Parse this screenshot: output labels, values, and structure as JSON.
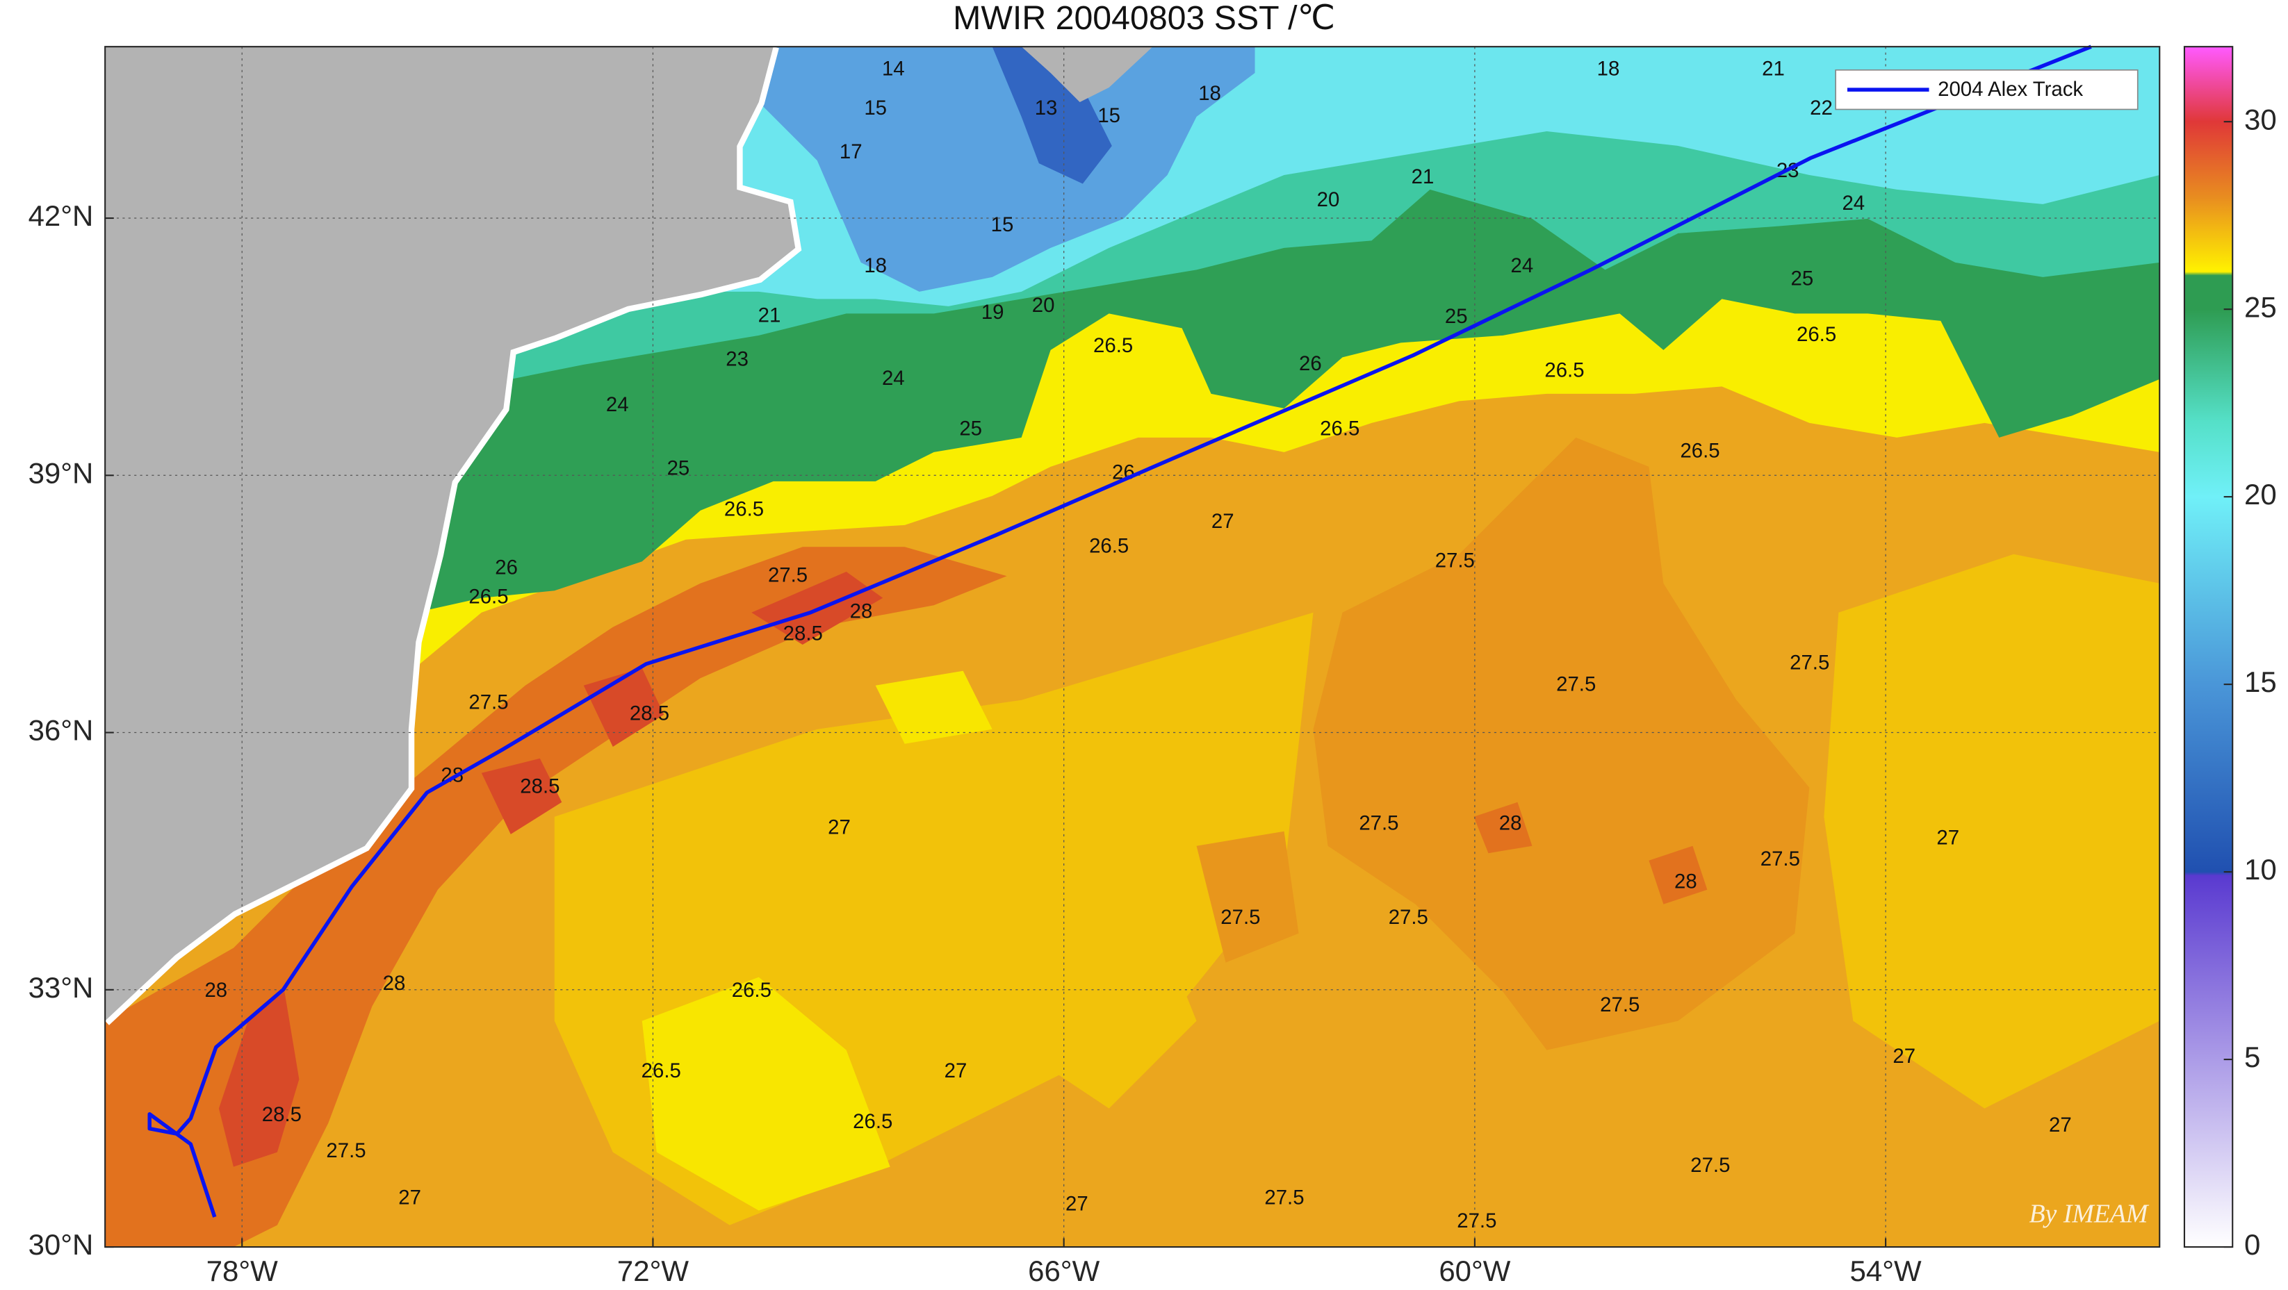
{
  "chart_data": {
    "type": "map",
    "title": "MWIR 20040803 SST /℃",
    "xlim": [
      -80,
      -50
    ],
    "ylim": [
      30,
      44
    ],
    "xticks": [
      {
        "value": -78,
        "label": "78°W"
      },
      {
        "value": -72,
        "label": "72°W"
      },
      {
        "value": -66,
        "label": "66°W"
      },
      {
        "value": -60,
        "label": "60°W"
      },
      {
        "value": -54,
        "label": "54°W"
      }
    ],
    "yticks": [
      {
        "value": 30,
        "label": "30°N"
      },
      {
        "value": 33,
        "label": "33°N"
      },
      {
        "value": 36,
        "label": "36°N"
      },
      {
        "value": 39,
        "label": "39°N"
      },
      {
        "value": 42,
        "label": "42°N"
      }
    ],
    "grid": true,
    "legend": "upper right",
    "series": [
      {
        "name": "2004 Alex Track",
        "color": "#0a14f0",
        "x": [
          -78.4,
          -78.75,
          -79.35,
          -79.35,
          -78.95,
          -78.75,
          -78.38,
          -77.4,
          -76.4,
          -75.3,
          -74.2,
          -72.1,
          -69.7,
          -67.0,
          -64.4,
          -60.9,
          -58.3,
          -55.1,
          -51.0
        ],
        "values": [
          30.35,
          31.2,
          31.55,
          31.38,
          31.32,
          31.5,
          32.33,
          33.0,
          34.2,
          35.3,
          35.8,
          36.8,
          37.4,
          38.3,
          39.2,
          40.4,
          41.4,
          42.7,
          44.0
        ]
      }
    ],
    "contour_labels": {
      "x": [
        -68.49,
        -68.75,
        -69.11,
        -66.26,
        -65.34,
        -63.87,
        -58.05,
        -55.64,
        -54.94,
        -55.43,
        -54.47,
        -55.22,
        -60.76,
        -62.14,
        -59.31,
        -60.27,
        -66.9,
        -68.75,
        -67.04,
        -66.3,
        -70.3,
        -70.77,
        -72.52,
        -68.49,
        -67.36,
        -71.63,
        -65.28,
        -62.4,
        -70.67,
        -74.14,
        -74.4,
        -65.13,
        -58.69,
        -55.01,
        -56.71,
        -61.97,
        -63.68,
        -70.03,
        -69.81,
        -68.96,
        -65.34,
        -60.29,
        -58.52,
        -55.11,
        -72.05,
        -74.4,
        -73.65,
        -74.93,
        -59.48,
        -56.92,
        -61.4,
        -55.54,
        -69.28,
        -53.09,
        -63.42,
        -60.97,
        -75.78,
        -78.38,
        -57.88,
        -70.56,
        -71.88,
        -77.42,
        -68.79,
        -51.45,
        -76.48,
        -75.55,
        -56.56,
        -62.78,
        -59.97,
        -65.81,
        -53.73,
        -67.58
      ],
      "y": [
        43.73,
        43.27,
        42.76,
        43.27,
        43.18,
        43.44,
        43.73,
        43.73,
        43.27,
        42.54,
        42.16,
        41.28,
        42.47,
        42.2,
        41.43,
        40.84,
        41.91,
        41.43,
        40.89,
        40.97,
        40.85,
        40.34,
        39.81,
        40.12,
        39.53,
        39.07,
        40.5,
        40.29,
        38.59,
        37.91,
        37.57,
        39.02,
        40.21,
        40.63,
        39.27,
        39.53,
        38.45,
        37.82,
        37.14,
        37.4,
        38.16,
        37.99,
        36.55,
        36.8,
        36.21,
        36.34,
        35.36,
        35.49,
        34.93,
        34.25,
        34.93,
        34.51,
        34.88,
        34.76,
        33.83,
        33.83,
        33.06,
        32.98,
        32.81,
        32.98,
        32.04,
        31.53,
        31.45,
        31.41,
        31.11,
        30.56,
        30.94,
        30.56,
        30.29,
        30.49,
        32.21,
        32.04
      ],
      "values": [
        14,
        15,
        17,
        13,
        15,
        18,
        18,
        21,
        22,
        23,
        24,
        25,
        21,
        20,
        24,
        25,
        15,
        18,
        19,
        20,
        21,
        23,
        24,
        24,
        25,
        25,
        26.5,
        26,
        26.5,
        26,
        26.5,
        26,
        26.5,
        26.5,
        26.5,
        26.5,
        27,
        27.5,
        28.5,
        28,
        26.5,
        27.5,
        27.5,
        27.5,
        28.5,
        27.5,
        28.5,
        28,
        28,
        28,
        27.5,
        27.5,
        27,
        27,
        27.5,
        27.5,
        28,
        28,
        27.5,
        26.5,
        26.5,
        28.5,
        26.5,
        27,
        27.5,
        27,
        27.5,
        27.5,
        27.5,
        27,
        27,
        27
      ]
    },
    "colorbar": {
      "ylim": [
        0,
        32
      ],
      "yticks": [
        0,
        5,
        10,
        15,
        20,
        25,
        30
      ],
      "colormap": [
        {
          "value": 0,
          "color": "#ffffff"
        },
        {
          "value": 9.9,
          "color": "#5a3ad0"
        },
        {
          "value": 10,
          "color": "#2050b0"
        },
        {
          "value": 15,
          "color": "#4a96d8"
        },
        {
          "value": 20,
          "color": "#70f0f8"
        },
        {
          "value": 22,
          "color": "#55e0c8"
        },
        {
          "value": 25,
          "color": "#2e9c52"
        },
        {
          "value": 25.9,
          "color": "#2e9c52"
        },
        {
          "value": 26,
          "color": "#fff200"
        },
        {
          "value": 28,
          "color": "#e88c20"
        },
        {
          "value": 30,
          "color": "#e03838"
        },
        {
          "value": 32,
          "color": "#ff5aff"
        }
      ]
    },
    "watermark": "By IMEAM"
  }
}
